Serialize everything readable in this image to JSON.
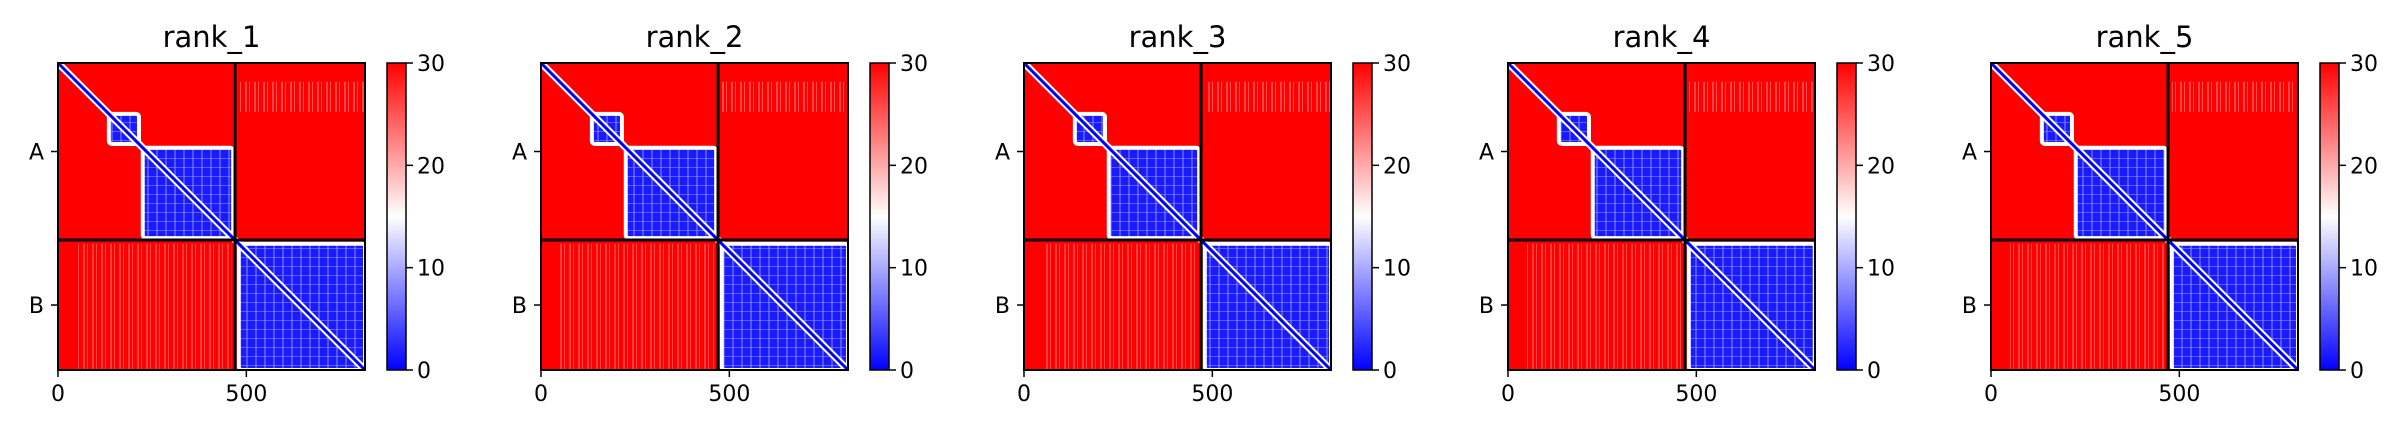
{
  "colormap": {
    "low": "#0000ff",
    "mid": "#ffffff",
    "high": "#ff0000"
  },
  "chart_data": [
    {
      "type": "heatmap",
      "title": "rank_1",
      "chains": [
        "A",
        "B"
      ],
      "chain_boundary": 470,
      "length": 815,
      "xticks": [
        "0",
        "500"
      ],
      "xtick_values": [
        0,
        500
      ],
      "colorbar_ticks": [
        "0",
        "10",
        "20",
        "30"
      ],
      "colorbar_range": [
        0,
        30
      ],
      "domains": [
        [
          135,
          215
        ],
        [
          225,
          465
        ],
        [
          480,
          815
        ]
      ]
    },
    {
      "type": "heatmap",
      "title": "rank_2",
      "chains": [
        "A",
        "B"
      ],
      "chain_boundary": 470,
      "length": 815,
      "xticks": [
        "0",
        "500"
      ],
      "xtick_values": [
        0,
        500
      ],
      "colorbar_ticks": [
        "0",
        "10",
        "20",
        "30"
      ],
      "colorbar_range": [
        0,
        30
      ],
      "domains": [
        [
          135,
          215
        ],
        [
          225,
          465
        ],
        [
          480,
          815
        ]
      ]
    },
    {
      "type": "heatmap",
      "title": "rank_3",
      "chains": [
        "A",
        "B"
      ],
      "chain_boundary": 470,
      "length": 815,
      "xticks": [
        "0",
        "500"
      ],
      "xtick_values": [
        0,
        500
      ],
      "colorbar_ticks": [
        "0",
        "10",
        "20",
        "30"
      ],
      "colorbar_range": [
        0,
        30
      ],
      "domains": [
        [
          135,
          215
        ],
        [
          225,
          465
        ],
        [
          480,
          815
        ]
      ]
    },
    {
      "type": "heatmap",
      "title": "rank_4",
      "chains": [
        "A",
        "B"
      ],
      "chain_boundary": 470,
      "length": 815,
      "xticks": [
        "0",
        "500"
      ],
      "xtick_values": [
        0,
        500
      ],
      "colorbar_ticks": [
        "0",
        "10",
        "20",
        "30"
      ],
      "colorbar_range": [
        0,
        30
      ],
      "domains": [
        [
          135,
          215
        ],
        [
          225,
          465
        ],
        [
          480,
          815
        ]
      ]
    },
    {
      "type": "heatmap",
      "title": "rank_5",
      "chains": [
        "A",
        "B"
      ],
      "chain_boundary": 470,
      "length": 815,
      "xticks": [
        "0",
        "500"
      ],
      "xtick_values": [
        0,
        500
      ],
      "colorbar_ticks": [
        "0",
        "10",
        "20",
        "30"
      ],
      "colorbar_range": [
        0,
        30
      ],
      "domains": [
        [
          135,
          215
        ],
        [
          225,
          465
        ],
        [
          480,
          815
        ]
      ]
    }
  ]
}
